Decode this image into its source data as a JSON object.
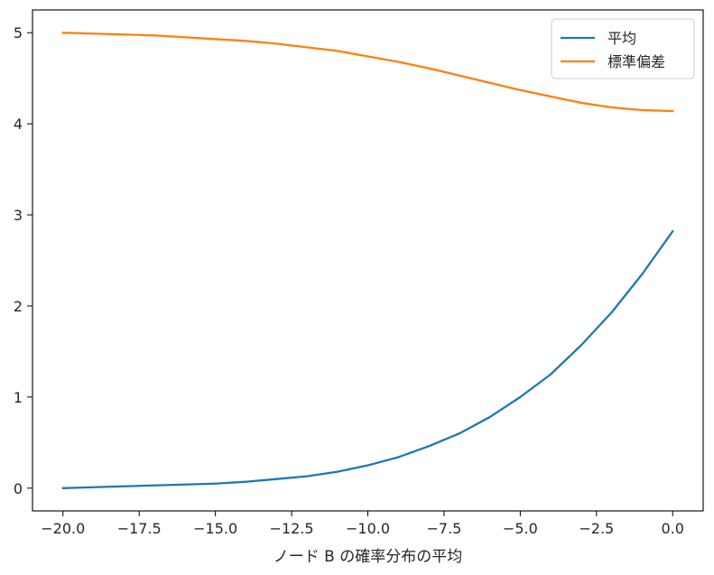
{
  "chart_data": {
    "type": "line",
    "title": "",
    "xlabel": "ノード B の確率分布の平均",
    "ylabel": "",
    "xlim": [
      -21.0,
      1.0
    ],
    "ylim": [
      -0.25,
      5.25
    ],
    "grid": false,
    "legend_position": "top-right",
    "x_ticks": [
      -20.0,
      -17.5,
      -15.0,
      -12.5,
      -10.0,
      -7.5,
      -5.0,
      -2.5,
      0.0
    ],
    "x_tick_labels": [
      "−20.0",
      "−17.5",
      "−15.0",
      "−12.5",
      "−10.0",
      "−7.5",
      "−5.0",
      "−2.5",
      "0.0"
    ],
    "y_ticks": [
      0,
      1,
      2,
      3,
      4,
      5
    ],
    "y_tick_labels": [
      "0",
      "1",
      "2",
      "3",
      "4",
      "5"
    ],
    "x": [
      -20,
      -19,
      -18,
      -17,
      -16,
      -15,
      -14,
      -13,
      -12,
      -11,
      -10,
      -9,
      -8,
      -7,
      -6,
      -5,
      -4,
      -3,
      -2,
      -1,
      0
    ],
    "series": [
      {
        "name": "平均",
        "color": "#1f77b4",
        "values": [
          0.0,
          0.01,
          0.02,
          0.03,
          0.04,
          0.05,
          0.07,
          0.1,
          0.13,
          0.18,
          0.25,
          0.34,
          0.46,
          0.6,
          0.78,
          1.0,
          1.25,
          1.57,
          1.93,
          2.35,
          2.82
        ]
      },
      {
        "name": "標準偏差",
        "color": "#ff7f0e",
        "values": [
          5.0,
          4.99,
          4.98,
          4.97,
          4.95,
          4.93,
          4.91,
          4.88,
          4.84,
          4.8,
          4.74,
          4.68,
          4.61,
          4.53,
          4.45,
          4.37,
          4.3,
          4.23,
          4.18,
          4.15,
          4.14
        ]
      }
    ]
  }
}
